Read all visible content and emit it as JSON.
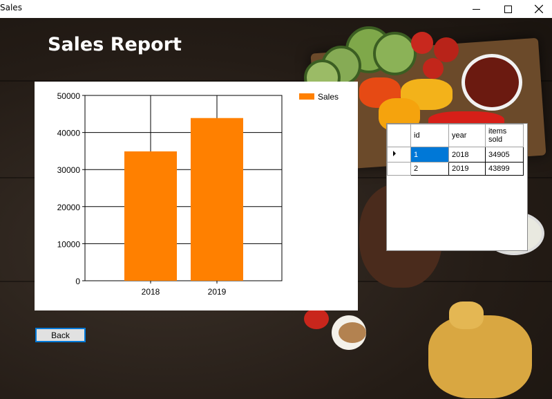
{
  "window": {
    "title": "Sales"
  },
  "header": {
    "title": "Sales Report"
  },
  "chart_data": {
    "type": "bar",
    "categories": [
      "2018",
      "2019"
    ],
    "series": [
      {
        "name": "Sales",
        "values": [
          34905,
          43899
        ],
        "color": "#ff8000"
      }
    ],
    "ylim": [
      0,
      50000
    ],
    "yticks": [
      "0",
      "10000",
      "20000",
      "30000",
      "40000",
      "50000"
    ],
    "grid": true,
    "legend_position": "top-right"
  },
  "grid": {
    "columns": [
      "id",
      "year",
      "items\nsold"
    ],
    "rows": [
      [
        "1",
        "2018",
        "34905"
      ],
      [
        "2",
        "2019",
        "43899"
      ]
    ]
  },
  "buttons": {
    "back_label": "Back"
  },
  "icons": {
    "minimize": "minimize-icon",
    "maximize": "maximize-icon",
    "close": "close-icon",
    "row-indicator": "triangle-right-icon"
  }
}
